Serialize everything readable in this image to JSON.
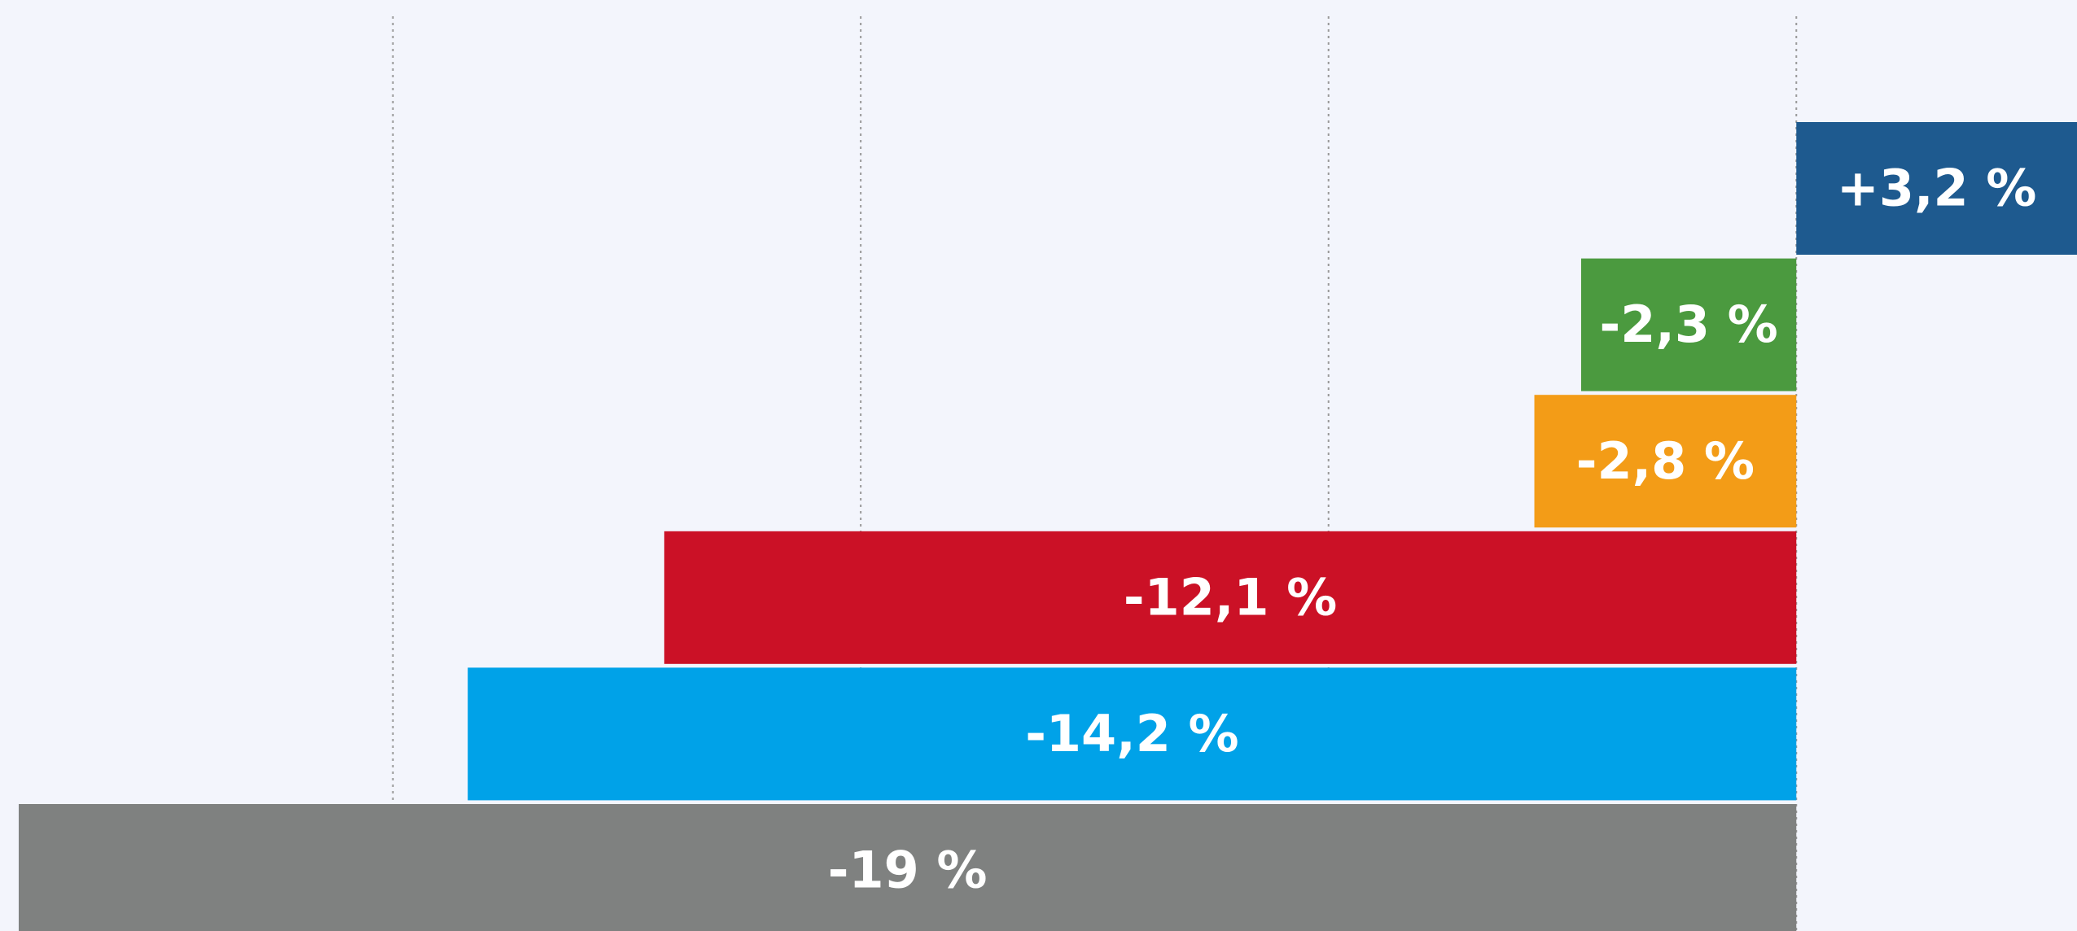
{
  "chart_data": {
    "type": "barh",
    "categories": [
      null,
      null,
      null,
      null,
      null,
      null
    ],
    "values": [
      3.2,
      -2.3,
      -2.8,
      -12.1,
      -14.2,
      -19
    ],
    "value_labels": [
      "+3,2 %",
      "-2,3 %",
      "-2,8 %",
      "-12,1 %",
      "-14,2 %",
      "-19 %"
    ],
    "colors": [
      "#1e5a8f",
      "#4b9a3f",
      "#f39c17",
      "#cb1126",
      "#00a2e8",
      "#7f8180"
    ],
    "xlim": [
      -19.2,
      3.0
    ],
    "xticks": [
      -15,
      -10,
      -5,
      0
    ],
    "grid": true
  }
}
